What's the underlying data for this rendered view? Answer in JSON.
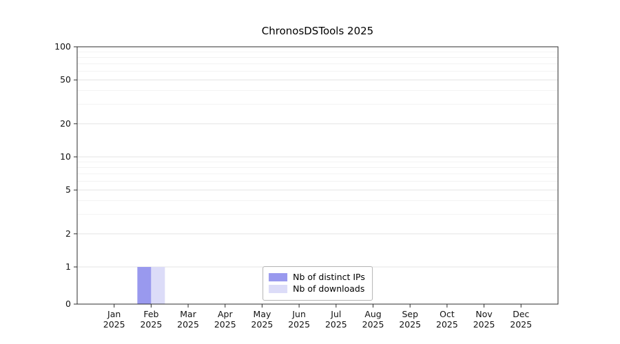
{
  "title": "ChronosDSTools 2025",
  "chart_data": {
    "type": "bar",
    "months": [
      "Jan",
      "Feb",
      "Mar",
      "Apr",
      "May",
      "Jun",
      "Jul",
      "Aug",
      "Sep",
      "Oct",
      "Nov",
      "Dec"
    ],
    "year_label": "2025",
    "categories": [
      "Jan 2025",
      "Feb 2025",
      "Mar 2025",
      "Apr 2025",
      "May 2025",
      "Jun 2025",
      "Jul 2025",
      "Aug 2025",
      "Sep 2025",
      "Oct 2025",
      "Nov 2025",
      "Dec 2025"
    ],
    "series": [
      {
        "name": "Nb of distinct IPs",
        "color": "#9999ee",
        "values": [
          0,
          1,
          0,
          0,
          0,
          0,
          0,
          0,
          0,
          0,
          0,
          0
        ]
      },
      {
        "name": "Nb of downloads",
        "color": "#dcdcf8",
        "values": [
          0,
          1,
          0,
          0,
          0,
          0,
          0,
          0,
          0,
          0,
          0,
          0
        ]
      }
    ],
    "yscale": "symlog",
    "yticks": [
      0,
      1,
      2,
      5,
      10,
      20,
      50,
      100
    ],
    "ylim": [
      0,
      100
    ],
    "grid": true,
    "legend_position": "lower center",
    "colors": {
      "spine": "#2b2b2b",
      "major_grid": "#e3e3e3",
      "minor_grid": "#f2f2f2",
      "tick_text": "#111111"
    }
  }
}
